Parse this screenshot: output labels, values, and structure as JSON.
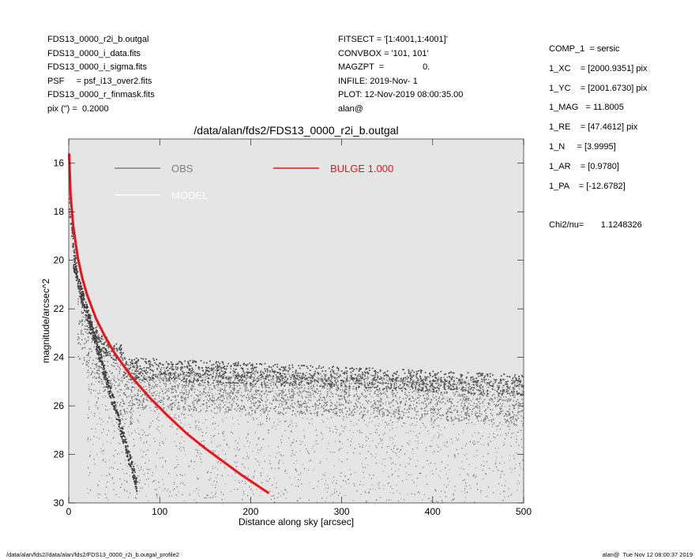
{
  "header_left": [
    "FDS13_0000_r2i_b.outgal",
    "FDS13_0000_i_data.fits",
    "FDS13_0000_i_sigma.fits",
    "PSF     = psf_i13_over2.fits",
    "FDS13_0000_r_finmask.fits",
    "pix (\") =  0.2000"
  ],
  "header_mid": [
    "FITSECT = '[1:4001,1:4001]'",
    "CONVBOX = '101, 101'",
    "MAGZPT  =                0.",
    "INFILE: 2019-Nov- 1",
    "PLOT: 12-Nov-2019 08:00:35.00",
    "alan@"
  ],
  "params": [
    "COMP_1  = sersic",
    "1_XC    = [2000.9351] pix",
    "1_YC    = [2001.6730] pix",
    "1_MAG   = 11.8005",
    "1_RE    = [47.4612] pix",
    "1_N     = [3.9995]",
    "1_AR    = [0.9780]",
    "1_PA    = [-12.6782]"
  ],
  "chi2": "Chi2/nu=       1.1248326",
  "footer": {
    "left": "/data/alan/fds2//data/alan/fds2/FDS13_0000_r2i_b.outgal_profile2",
    "right": "alan@  Tue Nov 12 08:00:37 2019"
  },
  "colors": {
    "plot_bg": "#e5e5e5",
    "obs": "#808080",
    "model": "#ffffff",
    "bulge": "#e8141a",
    "data_dark": "#505050",
    "data_mid": "#7a7a7a"
  },
  "chart_data": {
    "type": "scatter",
    "title": "/data/alan/fds2/FDS13_0000_r2i_b.outgal",
    "xlabel": "Distance along sky [arcsec]",
    "ylabel": "magnitude/arcsec^2",
    "xlim": [
      0,
      500
    ],
    "ylim": [
      30,
      15
    ],
    "xticks": [
      "0",
      "100",
      "200",
      "300",
      "400",
      "500"
    ],
    "yticks": [
      "16",
      "18",
      "20",
      "22",
      "24",
      "26",
      "28",
      "30"
    ],
    "legend": [
      {
        "label": "OBS",
        "color": "#808080"
      },
      {
        "label": "MODEL",
        "color": "#ffffff"
      },
      {
        "label": "BULGE  1.000",
        "color": "#e8141a"
      }
    ],
    "series": [
      {
        "name": "BULGE  1.000",
        "type": "line",
        "x": [
          0.5,
          2,
          5,
          10,
          15,
          20,
          30,
          40,
          50,
          70,
          90,
          110,
          130,
          150,
          170,
          190,
          210,
          220
        ],
        "y": [
          15.6,
          17.3,
          18.6,
          19.9,
          20.75,
          21.4,
          22.4,
          23.15,
          23.8,
          24.85,
          25.7,
          26.45,
          27.15,
          27.75,
          28.3,
          28.85,
          29.35,
          29.6
        ]
      },
      {
        "name": "OBS",
        "type": "scatter",
        "description_points": "upper envelope ~24.5 beyond 60 arcsec, lower scatter to 30",
        "x": [
          3,
          6,
          10,
          15,
          20,
          30,
          40,
          50,
          60,
          80,
          100,
          150,
          200,
          250,
          300,
          350,
          400,
          450,
          500
        ],
        "y": [
          17.5,
          19.5,
          20.5,
          21.5,
          22.2,
          23.0,
          23.5,
          23.8,
          24.0,
          24.2,
          24.3,
          24.4,
          24.5,
          24.6,
          24.7,
          24.7,
          24.8,
          24.9,
          25.0
        ]
      }
    ],
    "annotations": []
  }
}
